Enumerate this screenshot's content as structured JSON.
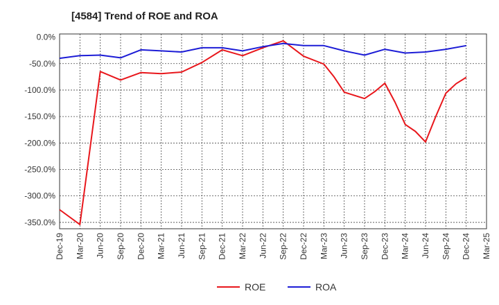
{
  "chart_data": {
    "type": "line",
    "title": "[4584]  Trend of ROE and ROA",
    "xlabel": "",
    "ylabel": "",
    "categories": [
      "Dec-19",
      "Mar-20",
      "Jun-20",
      "Sep-20",
      "Dec-20",
      "Mar-21",
      "Jun-21",
      "Sep-21",
      "Dec-21",
      "Mar-22",
      "Jun-22",
      "Sep-22",
      "Dec-22",
      "Mar-23",
      "Jun-23",
      "Sep-23",
      "Dec-23",
      "Mar-24",
      "Jun-24",
      "Sep-24",
      "Dec-24",
      "Mar-25"
    ],
    "y_ticks": [
      "0.0%",
      "-50.0%",
      "-100.0%",
      "-150.0%",
      "-200.0%",
      "-250.0%",
      "-300.0%",
      "-350.0%"
    ],
    "y_tick_values": [
      0,
      -50,
      -100,
      -150,
      -200,
      -250,
      -300,
      -350
    ],
    "ylim": [
      -362,
      6
    ],
    "grid": true,
    "legend_position": "bottom",
    "series": [
      {
        "name": "ROE",
        "color": "#e8161b",
        "points": [
          [
            0,
            -326
          ],
          [
            1,
            -354
          ],
          [
            2,
            -65
          ],
          [
            3,
            -81
          ],
          [
            4,
            -67
          ],
          [
            5,
            -69
          ],
          [
            6,
            -66
          ],
          [
            7,
            -48
          ],
          [
            8,
            -24
          ],
          [
            9,
            -35
          ],
          [
            10,
            -20
          ],
          [
            11,
            -7
          ],
          [
            12,
            -36
          ],
          [
            13,
            -51
          ],
          [
            13.5,
            -75
          ],
          [
            14,
            -104
          ],
          [
            15,
            -116
          ],
          [
            15.5,
            -103
          ],
          [
            16,
            -87
          ],
          [
            16.5,
            -123
          ],
          [
            17,
            -165
          ],
          [
            17.5,
            -178
          ],
          [
            18,
            -198
          ],
          [
            18.5,
            -150
          ],
          [
            19,
            -106
          ],
          [
            19.5,
            -88
          ],
          [
            20,
            -76
          ]
        ]
      },
      {
        "name": "ROA",
        "color": "#1c1cd6",
        "points": [
          [
            0,
            -40
          ],
          [
            1,
            -35
          ],
          [
            2,
            -34
          ],
          [
            3,
            -39
          ],
          [
            4,
            -24
          ],
          [
            5,
            -26
          ],
          [
            6,
            -28
          ],
          [
            7,
            -20
          ],
          [
            8,
            -20
          ],
          [
            9,
            -26
          ],
          [
            10,
            -18
          ],
          [
            11,
            -12
          ],
          [
            12,
            -16
          ],
          [
            13,
            -16
          ],
          [
            14,
            -26
          ],
          [
            15,
            -34
          ],
          [
            16,
            -23
          ],
          [
            17,
            -30
          ],
          [
            18,
            -28
          ],
          [
            19,
            -23
          ],
          [
            20,
            -16
          ]
        ]
      }
    ]
  }
}
